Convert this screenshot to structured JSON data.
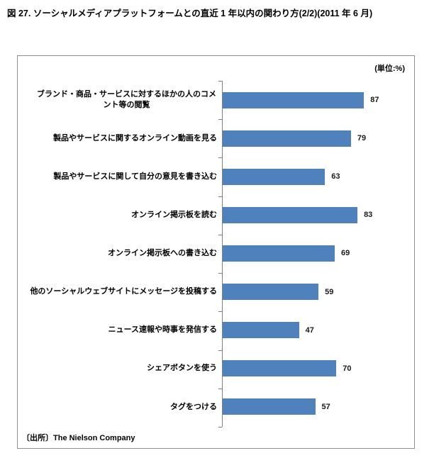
{
  "page": {
    "title": "図 27. ソーシャルメディアプラットフォームとの直近 1 年以内の関わり方(2/2)(2011 年 6 月)"
  },
  "chart_data": {
    "type": "bar",
    "orientation": "horizontal",
    "title": "図 27. ソーシャルメディアプラットフォームとの直近 1 年以内の関わり方(2/2)(2011 年 6 月)",
    "unit_label": "(単位:%)",
    "categories": [
      "ブランド・商品・サービスに対するほかの人のコメント等の閲覧",
      "製品やサービスに関するオンライン動画を見る",
      "製品やサービスに関して自分の意見を書き込む",
      "オンライン掲示板を読む",
      "オンライン掲示板への書き込む",
      "他のソーシャルウェブサイトにメッセージを投稿する",
      "ニュース速報や時事を発信する",
      "シェアボタンを使う",
      "タグをつける"
    ],
    "values": [
      87,
      79,
      63,
      83,
      69,
      59,
      47,
      70,
      57
    ],
    "xlim": [
      0,
      100
    ],
    "bar_color": "#4f81bd",
    "grid": false,
    "legend": "none",
    "value_labels": "outside-end"
  },
  "source": "〔出所〕The Nielson Company"
}
